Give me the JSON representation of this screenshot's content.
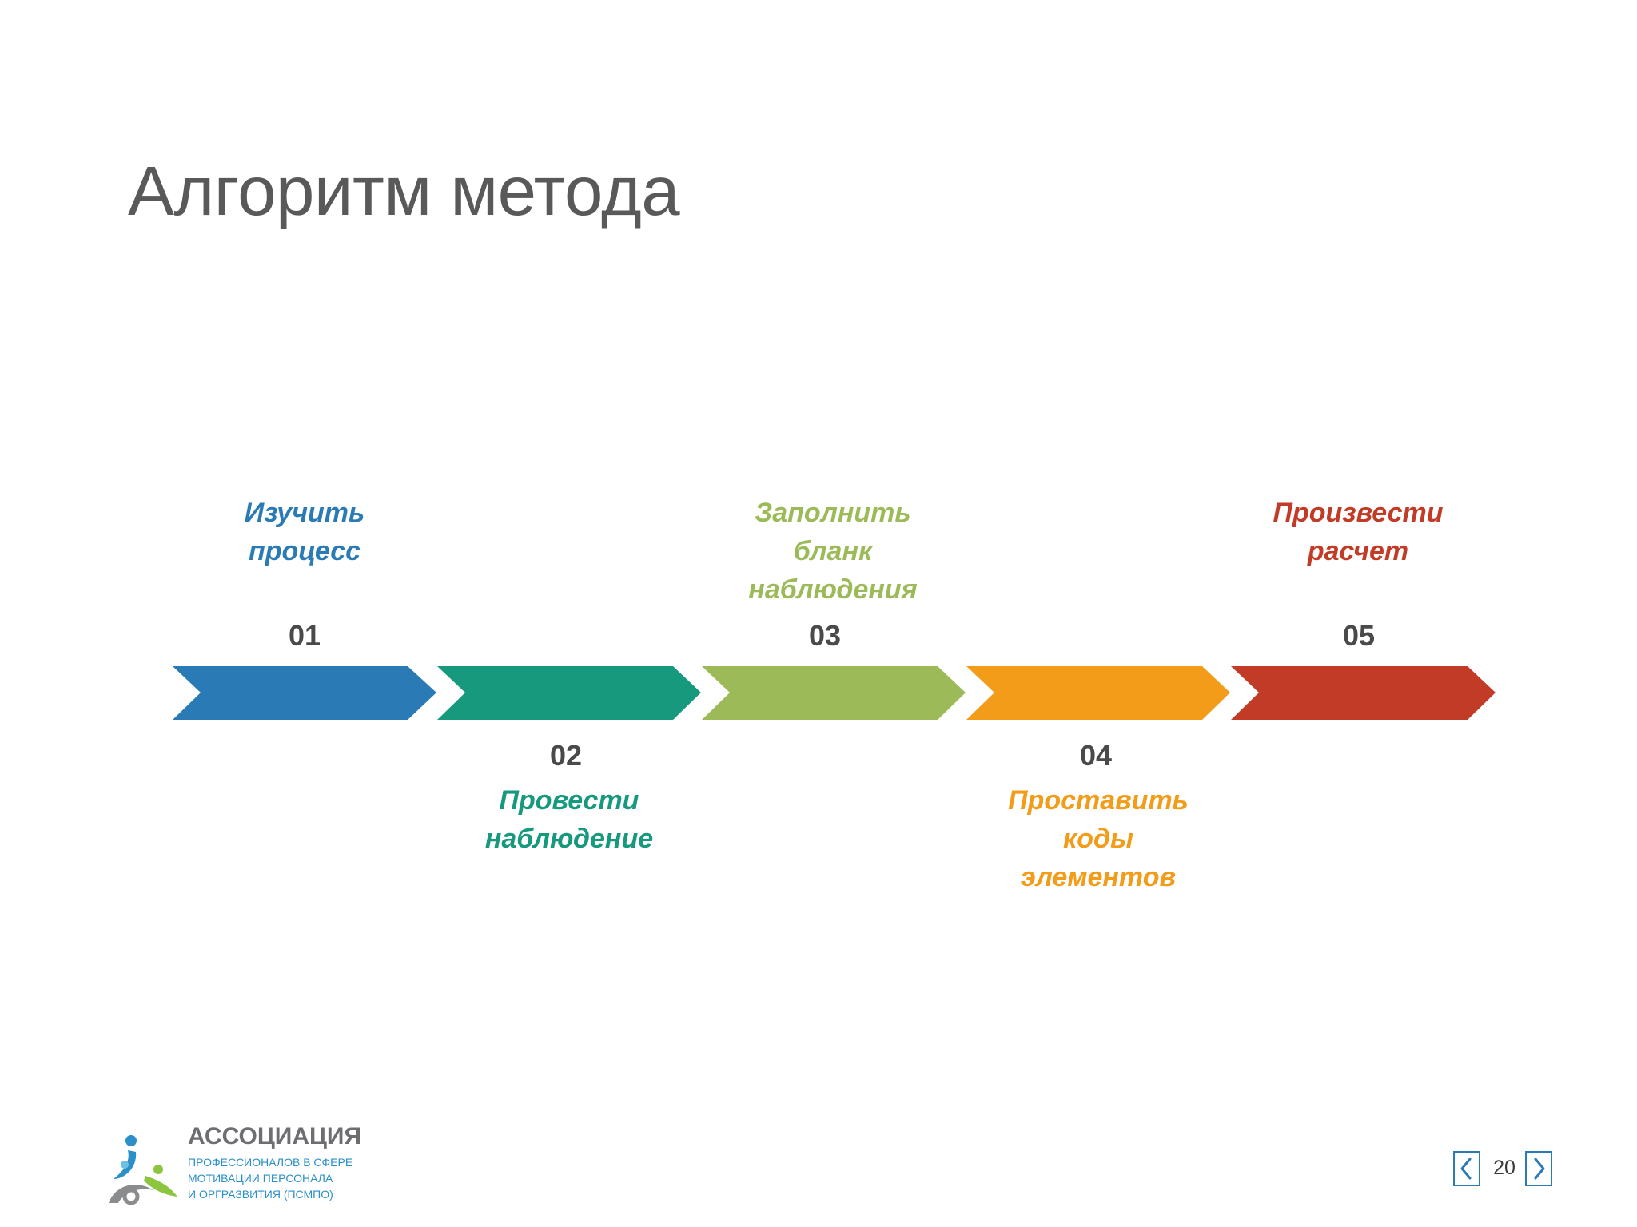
{
  "title": "Алгоритм метода",
  "steps": [
    {
      "number": "01",
      "lines": [
        "Изучить",
        "процесс"
      ],
      "color": "#2a7bb5"
    },
    {
      "number": "02",
      "lines": [
        "Провести",
        "наблюдение"
      ],
      "color": "#17997e"
    },
    {
      "number": "03",
      "lines": [
        "Заполнить",
        "бланк",
        "наблюдения"
      ],
      "color": "#9cbb58"
    },
    {
      "number": "04",
      "lines": [
        "Проставить",
        "коды",
        "элементов"
      ],
      "color": "#f29c19"
    },
    {
      "number": "05",
      "lines": [
        "Произвести",
        "расчет"
      ],
      "color": "#c23b26"
    }
  ],
  "logo": {
    "title": "АССОЦИАЦИЯ",
    "sub1": "ПРОФЕССИОНАЛОВ В СФЕРЕ",
    "sub2": "МОТИВАЦИИ ПЕРСОНАЛА",
    "sub3": "И ОРГРАЗВИТИЯ (ПСМПО)"
  },
  "navigation": {
    "page_number": "20",
    "prev_icon": "chevron-left-icon",
    "next_icon": "chevron-right-icon",
    "accent_color": "#2a7ab5"
  }
}
